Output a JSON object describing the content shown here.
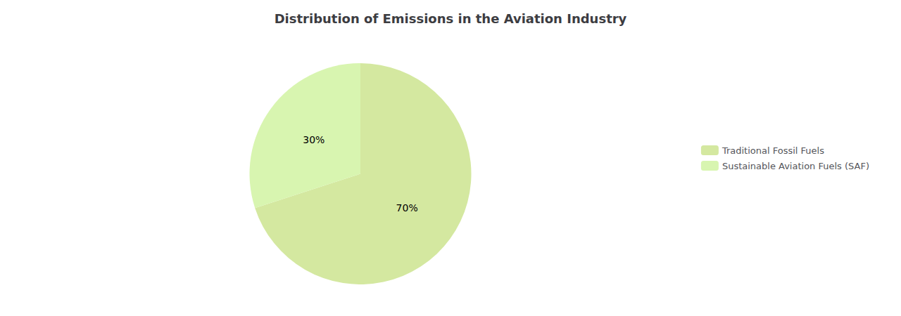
{
  "chart_data": {
    "type": "pie",
    "title": "Distribution of Emissions in the Aviation Industry",
    "categories": [
      "Traditional Fossil Fuels",
      "Sustainable Aviation Fuels (SAF)"
    ],
    "values": [
      70,
      30
    ],
    "value_labels": [
      "70%",
      "30%"
    ],
    "colors": [
      "#d4e8a0",
      "#d8f5b0"
    ],
    "data_labels": true,
    "legend": "right"
  }
}
